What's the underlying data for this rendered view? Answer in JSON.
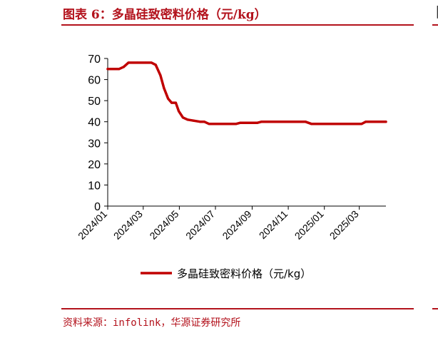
{
  "header": {
    "title": "图表 6：多晶硅致密料价格（元/kg）"
  },
  "footer": {
    "source": "资料来源：infolink，华源证券研究所"
  },
  "colors": {
    "accent": "#b3121c",
    "series": "#c00000"
  },
  "chart_data": {
    "type": "line",
    "title": "",
    "xlabel": "",
    "ylabel": "",
    "ylim": [
      0,
      70
    ],
    "yticks": [
      0,
      10,
      20,
      30,
      40,
      50,
      60,
      70
    ],
    "xlim": [
      "2024-01-01",
      "2025-04-15"
    ],
    "xtick_labels": [
      "2024/01",
      "2024/03",
      "2024/05",
      "2024/07",
      "2024/09",
      "2024/11",
      "2025/01",
      "2025/03"
    ],
    "xtick_dates": [
      "2024-01-01",
      "2024-03-01",
      "2024-05-01",
      "2024-07-01",
      "2024-09-01",
      "2024-11-01",
      "2025-01-01",
      "2025-03-01"
    ],
    "grid": false,
    "legend_position": "bottom",
    "series": [
      {
        "name": "多晶硅致密料价格（元/kg）",
        "points": [
          [
            "2024-01-01",
            65
          ],
          [
            "2024-01-20",
            65
          ],
          [
            "2024-01-28",
            66
          ],
          [
            "2024-02-05",
            68
          ],
          [
            "2024-02-20",
            68
          ],
          [
            "2024-03-05",
            68
          ],
          [
            "2024-03-15",
            68
          ],
          [
            "2024-03-22",
            67
          ],
          [
            "2024-03-30",
            62
          ],
          [
            "2024-04-05",
            56
          ],
          [
            "2024-04-12",
            51
          ],
          [
            "2024-04-18",
            49
          ],
          [
            "2024-04-25",
            49
          ],
          [
            "2024-04-30",
            45
          ],
          [
            "2024-05-07",
            42
          ],
          [
            "2024-05-15",
            41
          ],
          [
            "2024-05-25",
            40.5
          ],
          [
            "2024-06-05",
            40
          ],
          [
            "2024-06-12",
            40
          ],
          [
            "2024-06-20",
            39
          ],
          [
            "2024-07-10",
            39
          ],
          [
            "2024-08-05",
            39
          ],
          [
            "2024-08-12",
            39.5
          ],
          [
            "2024-09-10",
            39.5
          ],
          [
            "2024-09-17",
            40
          ],
          [
            "2024-10-20",
            40
          ],
          [
            "2024-11-30",
            40
          ],
          [
            "2024-12-10",
            39
          ],
          [
            "2025-01-20",
            39
          ],
          [
            "2025-02-20",
            39
          ],
          [
            "2025-03-05",
            39
          ],
          [
            "2025-03-12",
            40
          ],
          [
            "2025-04-15",
            40
          ]
        ]
      }
    ]
  }
}
